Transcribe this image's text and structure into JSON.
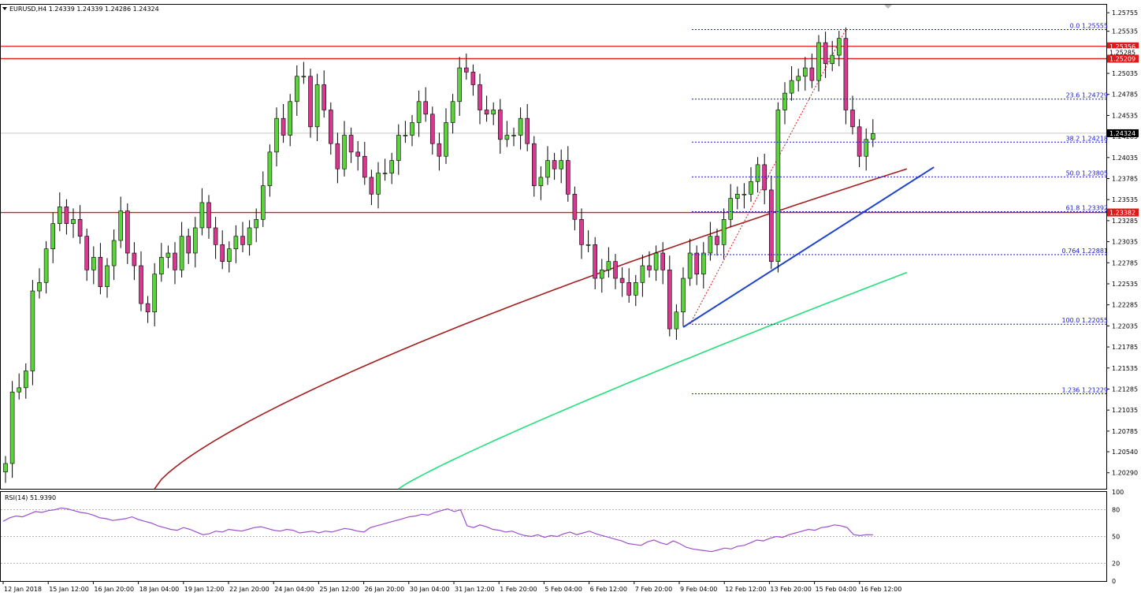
{
  "header": {
    "symbol": "EURUSD,H4",
    "ohlc": "1.24339 1.24339 1.24286 1.24324"
  },
  "colors": {
    "bull": "#5bd33a",
    "bear": "#d8388f",
    "wick": "#000000",
    "sma_slow": "#a51d1d",
    "sma_fast": "#22e07a",
    "trend": "#1e44cc",
    "resistance": "#e01818",
    "fib": "#1a1adb",
    "rsi": "#9f4fd1"
  },
  "chart_data": [
    {
      "type": "candlestick",
      "title": "EURUSD,H4",
      "ylim": [
        1.201,
        1.2585
      ],
      "y_ticks": [
        "1.25755",
        "1.25535",
        "1.25285",
        "1.25035",
        "1.24785",
        "1.24535",
        "1.24285",
        "1.24035",
        "1.23785",
        "1.23535",
        "1.23285",
        "1.23035",
        "1.22785",
        "1.22535",
        "1.22285",
        "1.22035",
        "1.21785",
        "1.21535",
        "1.21285",
        "1.21035",
        "1.20785",
        "1.20540",
        "1.20290"
      ],
      "x_labels": [
        "12 Jan 2018",
        "15 Jan 12:00",
        "16 Jan 20:00",
        "18 Jan 04:00",
        "19 Jan 12:00",
        "22 Jan 20:00",
        "24 Jan 04:00",
        "25 Jan 12:00",
        "26 Jan 20:00",
        "30 Jan 04:00",
        "31 Jan 12:00",
        "1 Feb 20:00",
        "5 Feb 04:00",
        "6 Feb 12:00",
        "7 Feb 20:00",
        "9 Feb 04:00",
        "12 Feb 12:00",
        "13 Feb 20:00",
        "15 Feb 04:00",
        "16 Feb 12:00"
      ],
      "close": [
        1.204,
        1.2125,
        1.213,
        1.215,
        1.2245,
        1.2255,
        1.2295,
        1.2325,
        1.2345,
        1.2325,
        1.233,
        1.231,
        1.227,
        1.2285,
        1.225,
        1.2275,
        1.2305,
        1.234,
        1.229,
        1.2275,
        1.223,
        1.222,
        1.2265,
        1.2285,
        1.229,
        1.227,
        1.231,
        1.229,
        1.232,
        1.235,
        1.232,
        1.23,
        1.228,
        1.2295,
        1.231,
        1.23,
        1.232,
        1.233,
        1.237,
        1.241,
        1.245,
        1.243,
        1.247,
        1.25,
        1.25,
        1.244,
        1.249,
        1.246,
        1.242,
        1.239,
        1.243,
        1.241,
        1.2405,
        1.238,
        1.236,
        1.2385,
        1.2385,
        1.24,
        1.243,
        1.243,
        1.2445,
        1.247,
        1.2455,
        1.242,
        1.2405,
        1.2445,
        1.247,
        1.251,
        1.2505,
        1.249,
        1.246,
        1.2455,
        1.246,
        1.2425,
        1.243,
        1.243,
        1.245,
        1.242,
        1.237,
        1.238,
        1.24,
        1.239,
        1.24,
        1.236,
        1.233,
        1.23,
        1.23,
        1.226,
        1.227,
        1.228,
        1.226,
        1.2255,
        1.224,
        1.2255,
        1.2275,
        1.227,
        1.229,
        1.227,
        1.22,
        1.222,
        1.226,
        1.229,
        1.2265,
        1.229,
        1.231,
        1.23,
        1.233,
        1.2355,
        1.236,
        1.236,
        1.2375,
        1.2395,
        1.2365,
        1.228,
        1.246,
        1.248,
        1.2495,
        1.25,
        1.251,
        1.2495,
        1.254,
        1.2515,
        1.2525,
        1.2545,
        1.246,
        1.244,
        1.2405,
        1.2425,
        1.2432
      ],
      "sma_slow_ends": [
        1.201,
        1.239
      ],
      "sma_fast_ends": [
        1.201,
        1.2267
      ],
      "resistance_levels": [
        1.25356,
        1.25209,
        1.23382
      ],
      "price_tags": [
        "1.25356",
        "1.25285",
        "1.25209",
        "1.24324",
        "1.23382"
      ],
      "current_price": 1.24324,
      "fibonacci": [
        {
          "label": "0.0 1.25555",
          "value": 1.25555
        },
        {
          "label": "23.6 1.24729",
          "value": 1.24729
        },
        {
          "label": "38.2 1.24218",
          "value": 1.24218
        },
        {
          "label": "50.0 1.23805",
          "value": 1.23805
        },
        {
          "label": "61.8 1.23392",
          "value": 1.23392
        },
        {
          "label": "0.764 1.22881",
          "value": 1.22881
        },
        {
          "label": "100.0 1.22055",
          "value": 1.22055
        },
        {
          "label": "1.236 1.21229",
          "value": 1.21229
        }
      ],
      "trendline": [
        [
          1.2202,
          1.2392
        ]
      ]
    },
    {
      "type": "line",
      "title": "RSI(14) 51.9390",
      "ylim": [
        0,
        100
      ],
      "y_ticks": [
        "100",
        "80",
        "50",
        "20",
        "0"
      ],
      "levels": [
        80,
        50,
        20
      ],
      "values": [
        67,
        71,
        73,
        72,
        75,
        78,
        77,
        79,
        80,
        82,
        81,
        79,
        77,
        76,
        74,
        71,
        70,
        68,
        69,
        70,
        72,
        69,
        67,
        65,
        62,
        60,
        58,
        57,
        60,
        58,
        55,
        52,
        53,
        56,
        55,
        58,
        57,
        56,
        58,
        60,
        61,
        59,
        57,
        56,
        58,
        57,
        54,
        55,
        56,
        54,
        56,
        55,
        57,
        59,
        58,
        56,
        55,
        60,
        62,
        64,
        66,
        68,
        70,
        72,
        73,
        75,
        74,
        77,
        79,
        81,
        78,
        80,
        62,
        60,
        63,
        61,
        58,
        57,
        55,
        56,
        53,
        51,
        50,
        52,
        49,
        51,
        50,
        53,
        55,
        52,
        54,
        56,
        53,
        51,
        49,
        47,
        45,
        42,
        41,
        40,
        44,
        46,
        43,
        41,
        45,
        42,
        38,
        36,
        35,
        34,
        33,
        35,
        37,
        36,
        39,
        40,
        43,
        46,
        45,
        48,
        50,
        49,
        52,
        54,
        56,
        58,
        57,
        60,
        61,
        63,
        62,
        60,
        52,
        51,
        52,
        51.9
      ]
    }
  ],
  "rsi_label": "RSI(14) 51.9390"
}
